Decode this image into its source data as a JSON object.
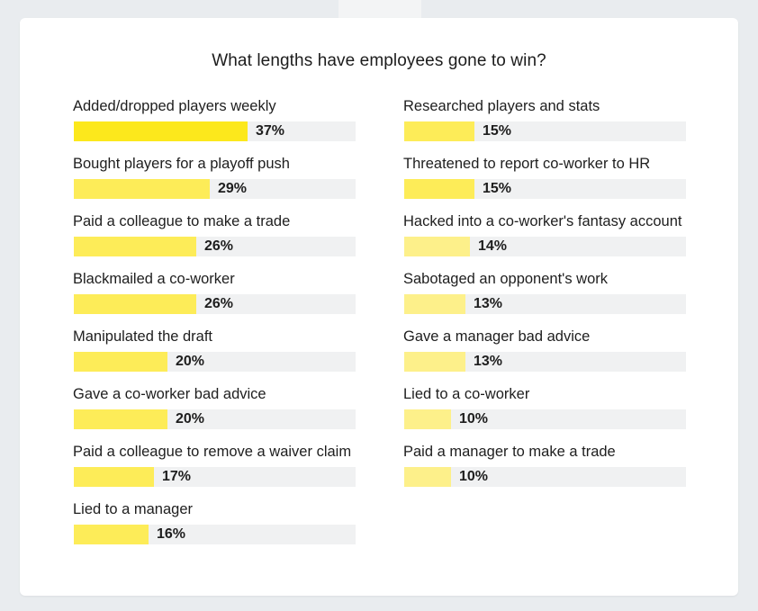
{
  "chart_data": {
    "type": "bar",
    "orientation": "horizontal",
    "title": "What lengths have employees gone to win?",
    "max_value": 60,
    "columns": [
      [
        {
          "label": "Added/dropped players weekly",
          "value": 37,
          "value_label": "37%"
        },
        {
          "label": "Bought players for a playoff push",
          "value": 29,
          "value_label": "29%"
        },
        {
          "label": "Paid a colleague to make a trade",
          "value": 26,
          "value_label": "26%"
        },
        {
          "label": "Blackmailed a co-worker",
          "value": 26,
          "value_label": "26%"
        },
        {
          "label": "Manipulated the draft",
          "value": 20,
          "value_label": "20%"
        },
        {
          "label": "Gave a co-worker bad advice",
          "value": 20,
          "value_label": "20%"
        },
        {
          "label": "Paid a colleague to remove a waiver claim",
          "value": 17,
          "value_label": "17%"
        },
        {
          "label": "Lied to a manager",
          "value": 16,
          "value_label": "16%"
        }
      ],
      [
        {
          "label": "Researched players and stats",
          "value": 15,
          "value_label": "15%"
        },
        {
          "label": "Threatened to report co-worker to HR",
          "value": 15,
          "value_label": "15%"
        },
        {
          "label": "Hacked into a co-worker's fantasy account",
          "value": 14,
          "value_label": "14%"
        },
        {
          "label": "Sabotaged an opponent's work",
          "value": 13,
          "value_label": "13%"
        },
        {
          "label": "Gave a manager bad advice",
          "value": 13,
          "value_label": "13%"
        },
        {
          "label": "Lied to a co-worker",
          "value": 10,
          "value_label": "10%"
        },
        {
          "label": "Paid a manager to make a trade",
          "value": 10,
          "value_label": "10%"
        }
      ]
    ],
    "colors": {
      "bar_strong": "#fce81c",
      "bar_mid": "#fdec58",
      "bar_light": "#fdf08a",
      "track": "#f0f1f2"
    }
  }
}
